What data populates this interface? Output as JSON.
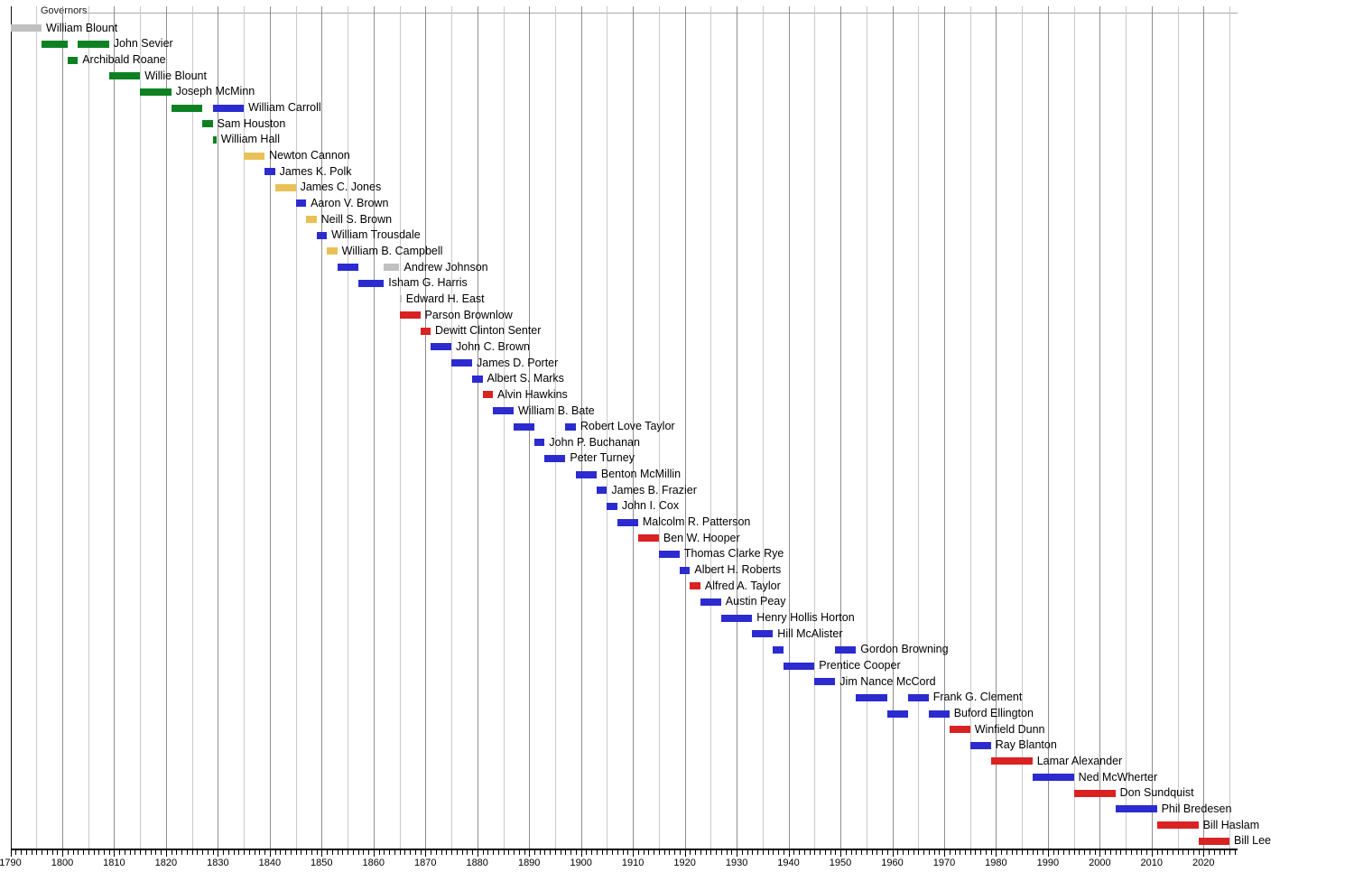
{
  "chart_data": {
    "type": "bar",
    "variant": "horizontal-timeline-gantt",
    "title": "Governors",
    "axis": {
      "year_start": 1790,
      "year_end": 2026,
      "minor_tick_interval": 1,
      "major_tick_interval": 10,
      "gridline_interval": 5,
      "tick_labels": [
        "1790",
        "1800",
        "1810",
        "1820",
        "1830",
        "1840",
        "1850",
        "1860",
        "1870",
        "1880",
        "1890",
        "1900",
        "1910",
        "1920",
        "1930",
        "1940",
        "1950",
        "1960",
        "1970",
        "1980",
        "1990",
        "2000",
        "2010",
        "2020"
      ]
    },
    "colors": {
      "gray": "#c0c0c0",
      "green": "#0b8121",
      "blue": "#2b2bd0",
      "yellow": "#e9c157",
      "red": "#d92222"
    },
    "grid_colors": {
      "origin": "#111111",
      "major": "#8f8f8f",
      "minor": "#c9c9c9"
    },
    "governors": [
      {
        "name": "William Blount",
        "terms": [
          [
            1790,
            1796,
            "gray"
          ]
        ]
      },
      {
        "name": "John Sevier",
        "terms": [
          [
            1796,
            1801,
            "green"
          ],
          [
            1803,
            1809,
            "green"
          ]
        ]
      },
      {
        "name": "Archibald Roane",
        "terms": [
          [
            1801,
            1803,
            "green"
          ]
        ]
      },
      {
        "name": "Willie Blount",
        "terms": [
          [
            1809,
            1815,
            "green"
          ]
        ]
      },
      {
        "name": "Joseph McMinn",
        "terms": [
          [
            1815,
            1821,
            "green"
          ]
        ]
      },
      {
        "name": "William Carroll",
        "terms": [
          [
            1821,
            1827,
            "green"
          ],
          [
            1829,
            1835,
            "blue"
          ]
        ]
      },
      {
        "name": "Sam Houston",
        "terms": [
          [
            1827,
            1829,
            "green"
          ]
        ]
      },
      {
        "name": "William Hall",
        "terms": [
          [
            1829,
            1829.7,
            "green"
          ]
        ]
      },
      {
        "name": "Newton Cannon",
        "terms": [
          [
            1835,
            1839,
            "yellow"
          ]
        ]
      },
      {
        "name": "James K. Polk",
        "terms": [
          [
            1839,
            1841,
            "blue"
          ]
        ]
      },
      {
        "name": "James C. Jones",
        "terms": [
          [
            1841,
            1845,
            "yellow"
          ]
        ]
      },
      {
        "name": "Aaron V. Brown",
        "terms": [
          [
            1845,
            1847,
            "blue"
          ]
        ]
      },
      {
        "name": "Neill S. Brown",
        "terms": [
          [
            1847,
            1849,
            "yellow"
          ]
        ]
      },
      {
        "name": "William Trousdale",
        "terms": [
          [
            1849,
            1851,
            "blue"
          ]
        ]
      },
      {
        "name": "William B. Campbell",
        "terms": [
          [
            1851,
            1853,
            "yellow"
          ]
        ]
      },
      {
        "name": "Andrew Johnson",
        "terms": [
          [
            1853,
            1857,
            "blue"
          ],
          [
            1862,
            1865,
            "gray"
          ]
        ]
      },
      {
        "name": "Isham G. Harris",
        "terms": [
          [
            1857,
            1862,
            "blue"
          ]
        ]
      },
      {
        "name": "Edward H. East",
        "terms": [
          [
            1865,
            1865.4,
            "gray"
          ]
        ]
      },
      {
        "name": "Parson Brownlow",
        "terms": [
          [
            1865,
            1869,
            "red"
          ]
        ]
      },
      {
        "name": "Dewitt Clinton Senter",
        "terms": [
          [
            1869,
            1871,
            "red"
          ]
        ]
      },
      {
        "name": "John C. Brown",
        "terms": [
          [
            1871,
            1875,
            "blue"
          ]
        ]
      },
      {
        "name": "James D. Porter",
        "terms": [
          [
            1875,
            1879,
            "blue"
          ]
        ]
      },
      {
        "name": "Albert S. Marks",
        "terms": [
          [
            1879,
            1881,
            "blue"
          ]
        ]
      },
      {
        "name": "Alvin Hawkins",
        "terms": [
          [
            1881,
            1883,
            "red"
          ]
        ]
      },
      {
        "name": "William B. Bate",
        "terms": [
          [
            1883,
            1887,
            "blue"
          ]
        ]
      },
      {
        "name": "Robert Love Taylor",
        "terms": [
          [
            1887,
            1891,
            "blue"
          ],
          [
            1897,
            1899,
            "blue"
          ]
        ]
      },
      {
        "name": "John P. Buchanan",
        "terms": [
          [
            1891,
            1893,
            "blue"
          ]
        ]
      },
      {
        "name": "Peter Turney",
        "terms": [
          [
            1893,
            1897,
            "blue"
          ]
        ]
      },
      {
        "name": "Benton McMillin",
        "terms": [
          [
            1899,
            1903,
            "blue"
          ]
        ]
      },
      {
        "name": "James B. Frazier",
        "terms": [
          [
            1903,
            1905,
            "blue"
          ]
        ]
      },
      {
        "name": "John I. Cox",
        "terms": [
          [
            1905,
            1907,
            "blue"
          ]
        ]
      },
      {
        "name": "Malcolm R. Patterson",
        "terms": [
          [
            1907,
            1911,
            "blue"
          ]
        ]
      },
      {
        "name": "Ben W. Hooper",
        "terms": [
          [
            1911,
            1915,
            "red"
          ]
        ]
      },
      {
        "name": "Thomas Clarke Rye",
        "terms": [
          [
            1915,
            1919,
            "blue"
          ]
        ]
      },
      {
        "name": "Albert H. Roberts",
        "terms": [
          [
            1919,
            1921,
            "blue"
          ]
        ]
      },
      {
        "name": "Alfred A. Taylor",
        "terms": [
          [
            1921,
            1923,
            "red"
          ]
        ]
      },
      {
        "name": "Austin Peay",
        "terms": [
          [
            1923,
            1927,
            "blue"
          ]
        ]
      },
      {
        "name": "Henry Hollis Horton",
        "terms": [
          [
            1927,
            1933,
            "blue"
          ]
        ]
      },
      {
        "name": "Hill McAlister",
        "terms": [
          [
            1933,
            1937,
            "blue"
          ]
        ]
      },
      {
        "name": "Gordon Browning",
        "terms": [
          [
            1937,
            1939,
            "blue"
          ],
          [
            1949,
            1953,
            "blue"
          ]
        ]
      },
      {
        "name": "Prentice Cooper",
        "terms": [
          [
            1939,
            1945,
            "blue"
          ]
        ]
      },
      {
        "name": "Jim Nance McCord",
        "terms": [
          [
            1945,
            1949,
            "blue"
          ]
        ]
      },
      {
        "name": "Frank G. Clement",
        "terms": [
          [
            1953,
            1959,
            "blue"
          ],
          [
            1963,
            1967,
            "blue"
          ]
        ]
      },
      {
        "name": "Buford Ellington",
        "terms": [
          [
            1959,
            1963,
            "blue"
          ],
          [
            1967,
            1971,
            "blue"
          ]
        ]
      },
      {
        "name": "Winfield Dunn",
        "terms": [
          [
            1971,
            1975,
            "red"
          ]
        ]
      },
      {
        "name": "Ray Blanton",
        "terms": [
          [
            1975,
            1979,
            "blue"
          ]
        ]
      },
      {
        "name": "Lamar Alexander",
        "terms": [
          [
            1979,
            1987,
            "red"
          ]
        ]
      },
      {
        "name": "Ned McWherter",
        "terms": [
          [
            1987,
            1995,
            "blue"
          ]
        ]
      },
      {
        "name": "Don Sundquist",
        "terms": [
          [
            1995,
            2003,
            "red"
          ]
        ]
      },
      {
        "name": "Phil Bredesen",
        "terms": [
          [
            2003,
            2011,
            "blue"
          ]
        ]
      },
      {
        "name": "Bill Haslam",
        "terms": [
          [
            2011,
            2019,
            "red"
          ]
        ]
      },
      {
        "name": "Bill Lee",
        "terms": [
          [
            2019,
            2025,
            "red"
          ]
        ]
      }
    ]
  }
}
